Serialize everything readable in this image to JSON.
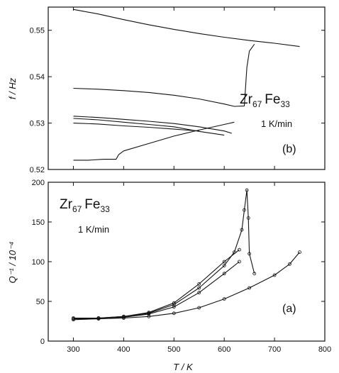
{
  "chart_data": [
    {
      "panel": "(b)",
      "type": "line",
      "ylabel": "f / Hz",
      "xlim": [
        250,
        800
      ],
      "ylim": [
        0.52,
        0.555
      ],
      "yticks": [
        0.52,
        0.53,
        0.54,
        0.55
      ],
      "annotations": {
        "alloy": "Zr",
        "sub1": "67",
        "element2": "Fe",
        "sub2": "33",
        "rate": "1 K/min",
        "label": "(b)"
      },
      "series": [
        {
          "x": [
            300,
            350,
            400,
            450,
            500,
            550,
            600,
            650,
            700,
            750
          ],
          "y": [
            0.5545,
            0.5535,
            0.5523,
            0.5512,
            0.5502,
            0.5493,
            0.5485,
            0.5478,
            0.5472,
            0.5465
          ]
        },
        {
          "x": [
            300,
            350,
            400,
            450,
            500,
            550,
            600,
            620,
            640,
            645,
            650,
            660
          ],
          "y": [
            0.5375,
            0.5373,
            0.537,
            0.5366,
            0.536,
            0.5352,
            0.5341,
            0.5336,
            0.5337,
            0.542,
            0.5455,
            0.547
          ]
        },
        {
          "x": [
            300,
            350,
            400,
            450,
            500,
            550,
            600,
            615
          ],
          "y": [
            0.5315,
            0.5312,
            0.5308,
            0.5304,
            0.5299,
            0.5292,
            0.5283,
            0.5278
          ]
        },
        {
          "x": [
            300,
            350,
            400,
            450,
            500,
            550,
            600
          ],
          "y": [
            0.531,
            0.5307,
            0.5302,
            0.5297,
            0.5292,
            0.5282,
            0.5274
          ]
        },
        {
          "x": [
            300,
            350,
            400,
            450,
            500,
            550
          ],
          "y": [
            0.53,
            0.5298,
            0.5294,
            0.5291,
            0.5287,
            0.5283
          ]
        },
        {
          "x": [
            300,
            330,
            360,
            385,
            390,
            400,
            450,
            500,
            550,
            600,
            620
          ],
          "y": [
            0.522,
            0.522,
            0.5222,
            0.5222,
            0.5232,
            0.524,
            0.5256,
            0.5272,
            0.5285,
            0.5297,
            0.5302
          ]
        }
      ]
    },
    {
      "panel": "(a)",
      "type": "line",
      "xlabel": "T / K",
      "ylabel": "Q⁻¹ / 10⁻⁴",
      "xlim": [
        250,
        800
      ],
      "ylim": [
        0,
        200
      ],
      "xticks": [
        300,
        400,
        500,
        600,
        700,
        800
      ],
      "yticks": [
        0,
        50,
        100,
        150,
        200
      ],
      "annotations": {
        "alloy": "Zr",
        "sub1": "67",
        "element2": "Fe",
        "sub2": "33",
        "rate": "1 K/min",
        "label": "(a)"
      },
      "series": [
        {
          "x": [
            300,
            350,
            400,
            450,
            500,
            550,
            600,
            620,
            635,
            640,
            645,
            648,
            650,
            660
          ],
          "y": [
            28,
            29,
            31,
            35,
            46,
            67,
            95,
            112,
            140,
            165,
            190,
            155,
            110,
            85
          ]
        },
        {
          "x": [
            300,
            350,
            400,
            450,
            500,
            550,
            600,
            630
          ],
          "y": [
            29,
            29,
            31,
            36,
            48,
            72,
            100,
            115
          ]
        },
        {
          "x": [
            300,
            350,
            400,
            450,
            500,
            550,
            600,
            630
          ],
          "y": [
            28,
            28,
            30,
            34,
            43,
            61,
            85,
            100
          ]
        },
        {
          "x": [
            300,
            350,
            400,
            450,
            500,
            550,
            600,
            650,
            700,
            730,
            750
          ],
          "y": [
            27,
            28,
            29,
            31,
            35,
            42,
            53,
            67,
            83,
            97,
            112
          ]
        }
      ]
    }
  ]
}
